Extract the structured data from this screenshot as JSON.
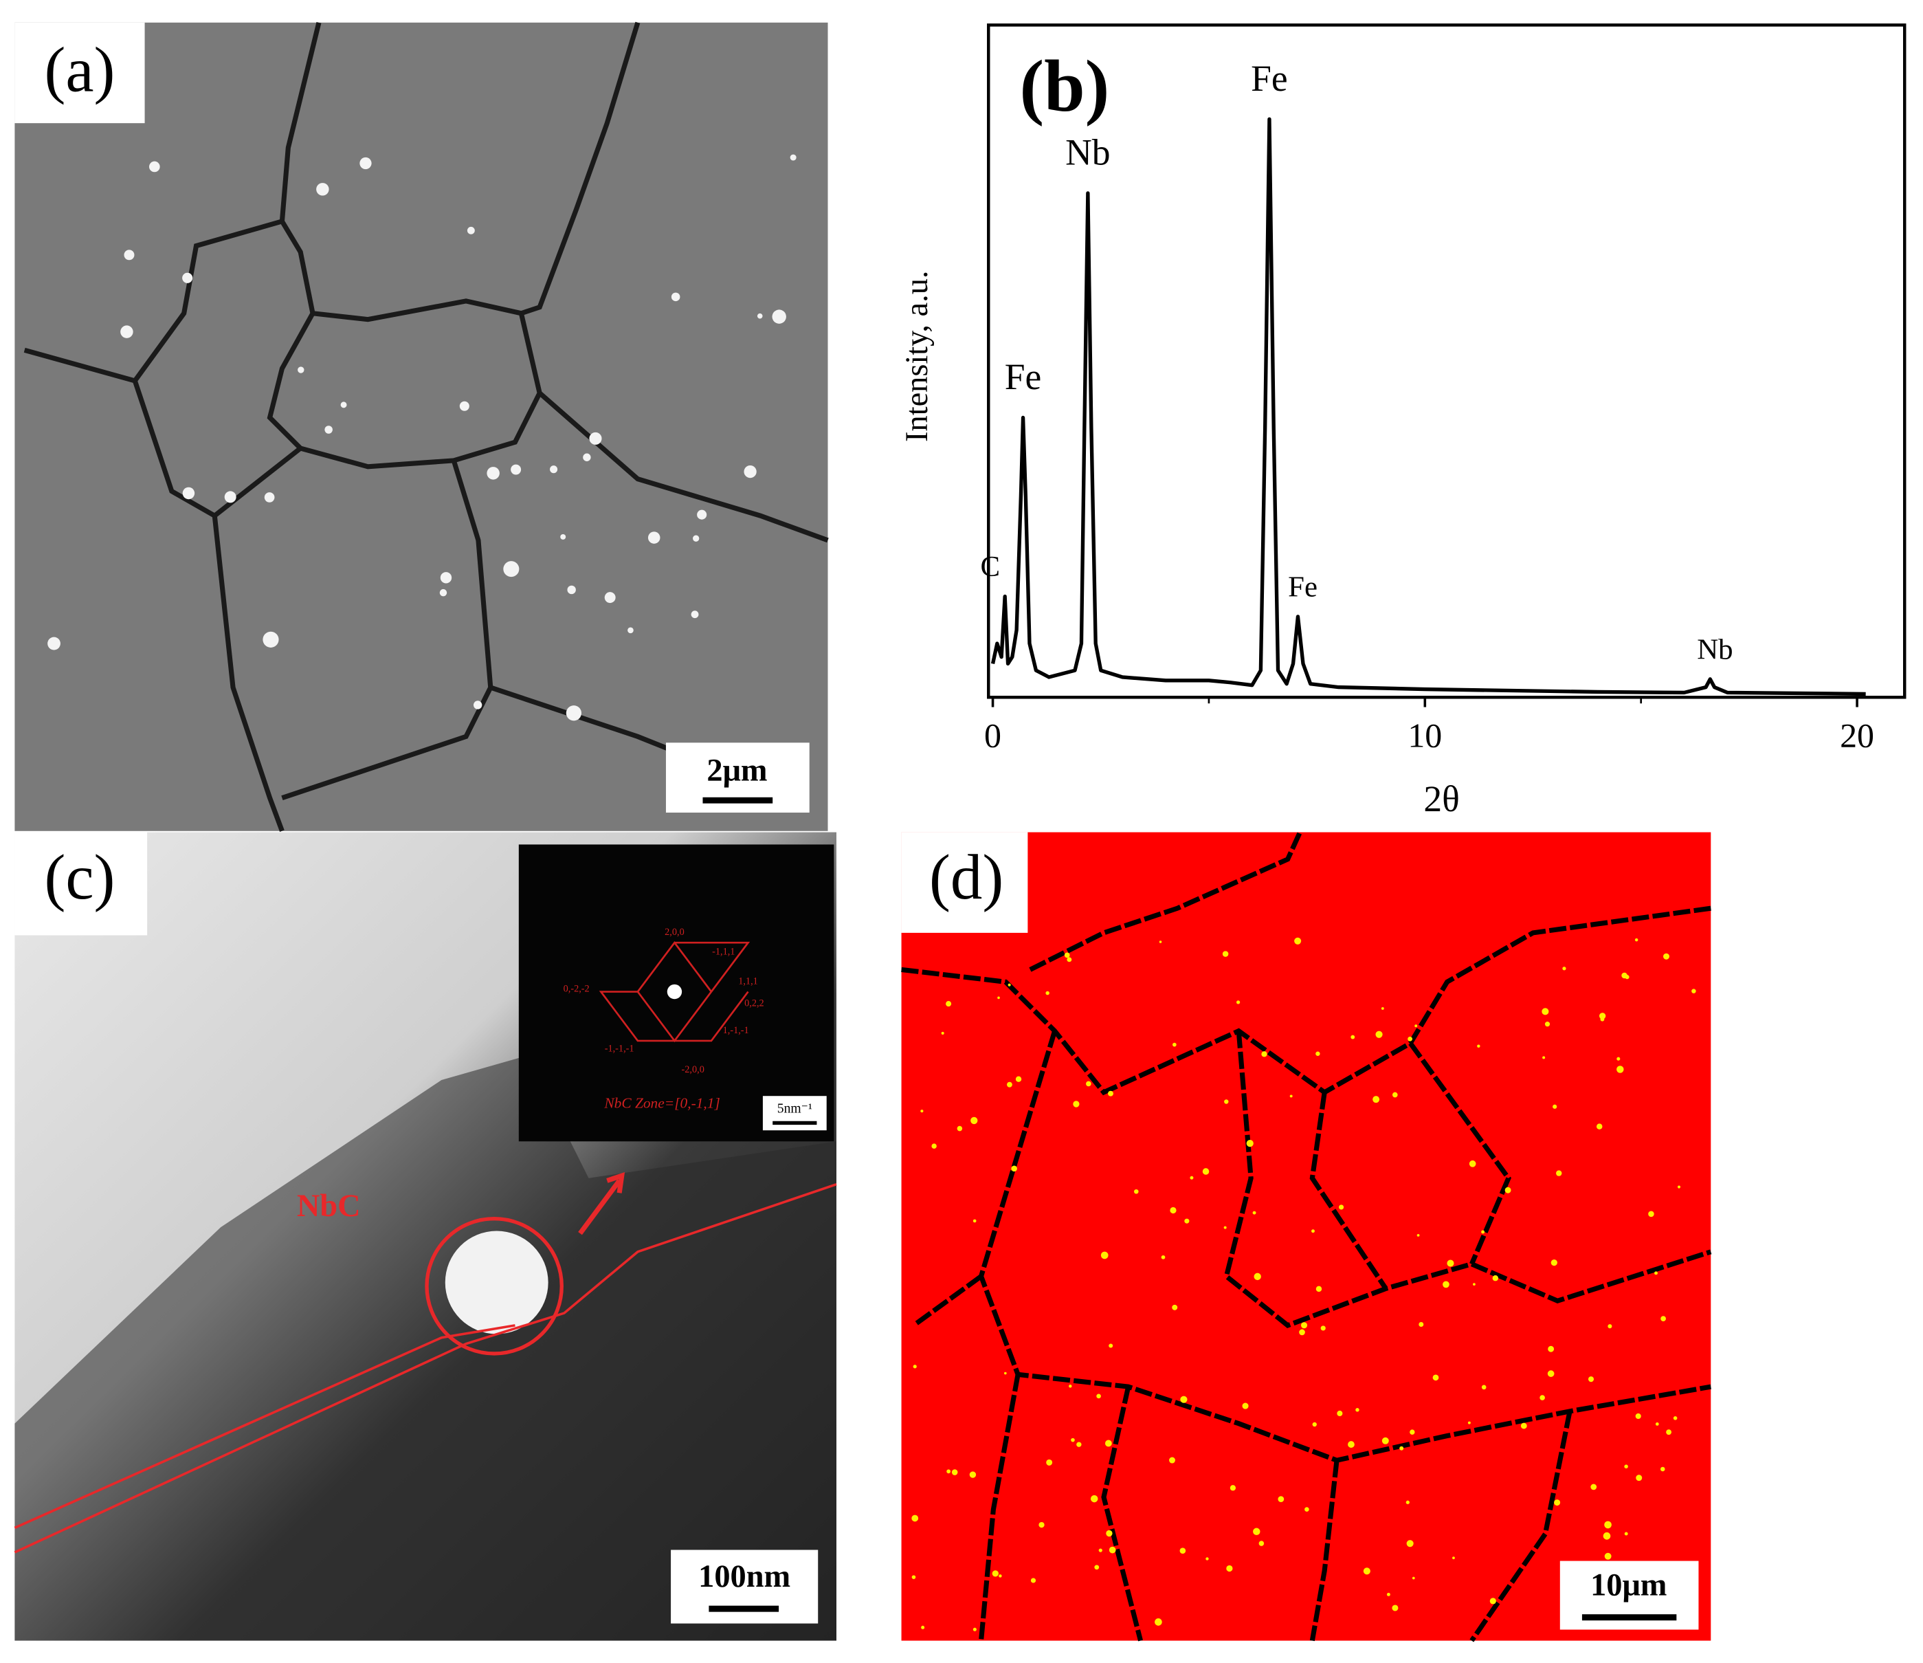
{
  "panels": {
    "a": {
      "label": "(a)",
      "scale_bar": "2μm"
    },
    "c": {
      "label": "(c)",
      "scale_bar": "100nm",
      "annotation": "NbC",
      "inset": {
        "zone": "NbC Zone=[0,-1,1]",
        "scale_bar": "5nm⁻¹",
        "spot_labels": [
          "2,0,0",
          "-1,1,1",
          "1,1,1",
          "0,-2,-2",
          "0,2,2",
          "-1,-1,-1",
          "1,-1,-1",
          "-2,0,0"
        ]
      }
    },
    "d": {
      "label": "(d)",
      "scale_bar": "10μm"
    }
  },
  "chart_data": {
    "type": "line",
    "label": "(b)",
    "x_label": "2θ",
    "y_label": "Intensity, a.u.",
    "color": "#000000",
    "xlim": [
      -0.1,
      21.1
    ],
    "xticks": [
      0,
      10,
      20
    ],
    "ylim": [
      0,
      100
    ],
    "x": [
      0,
      0.1,
      0.2,
      0.28,
      0.35,
      0.45,
      0.55,
      0.65,
      0.7,
      0.76,
      0.85,
      1.0,
      1.3,
      1.6,
      1.9,
      2.05,
      2.12,
      2.2,
      2.28,
      2.38,
      2.5,
      3,
      4,
      5,
      5.5,
      6,
      6.2,
      6.3,
      6.4,
      6.5,
      6.6,
      6.8,
      6.95,
      7.06,
      7.18,
      7.35,
      8,
      10,
      12,
      14,
      16,
      16.5,
      16.6,
      16.7,
      17,
      20.2
    ],
    "values": [
      5,
      8,
      6,
      15,
      5,
      6,
      10,
      30,
      41.6,
      30,
      8,
      4,
      3,
      3.5,
      4,
      8,
      40,
      75,
      40,
      8,
      4,
      3,
      2.5,
      2.5,
      2.2,
      1.8,
      4,
      40,
      86,
      40,
      4,
      2,
      5,
      12,
      5,
      2,
      1.5,
      1.2,
      1,
      0.8,
      0.7,
      1.5,
      2.7,
      1.5,
      0.7,
      0.5
    ],
    "annotations": [
      {
        "text": "C",
        "x": 0.28,
        "y": 15
      },
      {
        "text": "Fe",
        "x": 0.7,
        "y": 41.6
      },
      {
        "text": "Nb",
        "x": 2.2,
        "y": 75
      },
      {
        "text": "Fe",
        "x": 6.4,
        "y": 86
      },
      {
        "text": "Fe",
        "x": 7.06,
        "y": 12
      },
      {
        "text": "Nb",
        "x": 16.6,
        "y": 2.7
      }
    ]
  }
}
